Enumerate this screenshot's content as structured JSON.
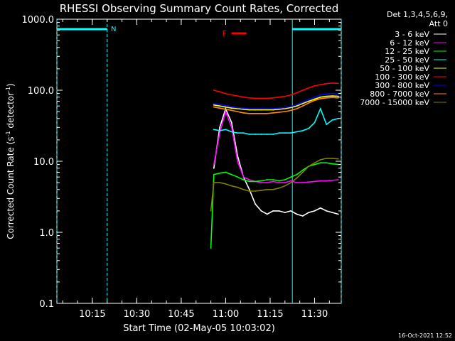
{
  "chart_data": {
    "type": "line",
    "title": "RHESSI Observing Summary Count Rates, Corrected",
    "xlabel": "Start Time (02-May-05 10:03:02)",
    "ylabel_parts": [
      "Corrected Count Rate (s",
      "-1",
      " detector",
      "-1",
      ")"
    ],
    "yscale": "log",
    "ylim": [
      0.1,
      1000.0
    ],
    "xlim": [
      "10:03:02",
      "11:39:00"
    ],
    "y_ticks": [
      "1000.0",
      "100.0",
      "10.0",
      "1.0",
      "0.1"
    ],
    "x_ticks": [
      "10:15",
      "10:30",
      "10:45",
      "11:00",
      "11:15",
      "11:30"
    ],
    "legend_header": [
      "Det 1,3,4,5,6,9,",
      "Att 0"
    ],
    "legend_position": "right",
    "timestamp": "16-Oct-2021 12:52",
    "series": [
      {
        "name": "3 - 6 keV",
        "color": "#ffffff",
        "x": [
          "10:56",
          "10:58",
          "11:00",
          "11:02",
          "11:04",
          "11:06",
          "11:08",
          "11:10",
          "11:12",
          "11:14",
          "11:16",
          "11:18",
          "11:20",
          "11:22",
          "11:24",
          "11:26",
          "11:28",
          "11:30",
          "11:32",
          "11:34",
          "11:36",
          "11:38"
        ],
        "y": [
          8,
          30,
          55,
          35,
          12,
          6,
          4,
          2.5,
          2,
          1.8,
          2,
          2,
          1.9,
          2,
          1.8,
          1.7,
          1.9,
          2,
          2.2,
          2.0,
          1.9,
          1.8
        ]
      },
      {
        "name": "6 - 12 keV",
        "color": "#ff00ff",
        "x": [
          "10:56",
          "10:58",
          "11:00",
          "11:02",
          "11:04",
          "11:06",
          "11:08",
          "11:10",
          "11:12",
          "11:14",
          "11:16",
          "11:18",
          "11:20",
          "11:22",
          "11:24",
          "11:26",
          "11:28",
          "11:30",
          "11:32",
          "11:34",
          "11:36",
          "11:38"
        ],
        "y": [
          9,
          25,
          50,
          30,
          10,
          6,
          5.5,
          5.2,
          5,
          5,
          5.2,
          5,
          5,
          5.3,
          5,
          5,
          5.1,
          5.2,
          5.3,
          5.3,
          5.4,
          5.5
        ]
      },
      {
        "name": "12 - 25 keV",
        "color": "#00ff00",
        "x": [
          "10:55",
          "10:56",
          "10:58",
          "11:00",
          "11:02",
          "11:04",
          "11:06",
          "11:08",
          "11:10",
          "11:12",
          "11:14",
          "11:16",
          "11:18",
          "11:20",
          "11:22",
          "11:24",
          "11:26",
          "11:28",
          "11:30",
          "11:32",
          "11:34",
          "11:36",
          "11:38"
        ],
        "y": [
          0.6,
          6.5,
          6.8,
          7,
          6.5,
          6,
          5.5,
          5.2,
          5.2,
          5.3,
          5.5,
          5.5,
          5.3,
          5.5,
          6,
          6.5,
          7.5,
          8.5,
          9,
          9.5,
          9.5,
          9.2,
          9
        ]
      },
      {
        "name": "25 - 50 keV",
        "color": "#00ffff",
        "x": [
          "10:56",
          "10:58",
          "11:00",
          "11:02",
          "11:04",
          "11:06",
          "11:08",
          "11:10",
          "11:12",
          "11:14",
          "11:16",
          "11:18",
          "11:20",
          "11:22",
          "11:24",
          "11:26",
          "11:28",
          "11:30",
          "11:32",
          "11:34",
          "11:36",
          "11:38"
        ],
        "y": [
          28,
          27,
          28,
          26,
          25,
          25,
          24,
          24,
          24,
          24,
          24,
          25,
          25,
          25,
          26,
          27,
          29,
          35,
          55,
          33,
          38,
          40
        ]
      },
      {
        "name": "50 - 100 keV",
        "color": "#ffff00",
        "x": [
          "10:56",
          "10:58",
          "11:00",
          "11:02",
          "11:04",
          "11:06",
          "11:08",
          "11:10",
          "11:12",
          "11:14",
          "11:16",
          "11:18",
          "11:20",
          "11:22",
          "11:24",
          "11:26",
          "11:28",
          "11:30",
          "11:32",
          "11:34",
          "11:36",
          "11:38"
        ],
        "y": [
          62,
          60,
          58,
          56,
          55,
          54,
          53,
          53,
          53,
          53,
          53,
          54,
          55,
          57,
          60,
          65,
          70,
          75,
          80,
          82,
          83,
          82
        ]
      },
      {
        "name": "100 - 300 keV",
        "color": "#ff0000",
        "x": [
          "10:56",
          "10:58",
          "11:00",
          "11:02",
          "11:04",
          "11:06",
          "11:08",
          "11:10",
          "11:12",
          "11:14",
          "11:16",
          "11:18",
          "11:20",
          "11:22",
          "11:24",
          "11:26",
          "11:28",
          "11:30",
          "11:32",
          "11:34",
          "11:36",
          "11:38"
        ],
        "y": [
          100,
          95,
          90,
          86,
          83,
          80,
          78,
          77,
          77,
          77,
          78,
          80,
          82,
          86,
          92,
          100,
          108,
          115,
          120,
          124,
          126,
          125
        ]
      },
      {
        "name": "300 - 800 keV",
        "color": "#0000ff",
        "x": [
          "10:56",
          "10:58",
          "11:00",
          "11:02",
          "11:04",
          "11:06",
          "11:08",
          "11:10",
          "11:12",
          "11:14",
          "11:16",
          "11:18",
          "11:20",
          "11:22",
          "11:24",
          "11:26",
          "11:28",
          "11:30",
          "11:32",
          "11:34",
          "11:36",
          "11:38"
        ],
        "y": [
          65,
          63,
          61,
          59,
          57,
          56,
          55,
          55,
          55,
          55,
          55,
          56,
          57,
          59,
          63,
          68,
          74,
          80,
          86,
          89,
          90,
          89
        ]
      },
      {
        "name": "800 - 7000 keV",
        "color": "#ff8c00",
        "x": [
          "10:56",
          "10:58",
          "11:00",
          "11:02",
          "11:04",
          "11:06",
          "11:08",
          "11:10",
          "11:12",
          "11:14",
          "11:16",
          "11:18",
          "11:20",
          "11:22",
          "11:24",
          "11:26",
          "11:28",
          "11:30",
          "11:32",
          "11:34",
          "11:36",
          "11:38"
        ],
        "y": [
          58,
          56,
          54,
          52,
          50,
          48,
          47,
          47,
          47,
          47,
          48,
          49,
          50,
          52,
          55,
          60,
          66,
          72,
          76,
          78,
          79,
          78
        ]
      },
      {
        "name": "7000 - 15000 keV",
        "color": "#808000",
        "x": [
          "10:55",
          "10:56",
          "10:58",
          "11:00",
          "11:02",
          "11:04",
          "11:06",
          "11:08",
          "11:10",
          "11:12",
          "11:14",
          "11:16",
          "11:18",
          "11:20",
          "11:22",
          "11:24",
          "11:26",
          "11:28",
          "11:30",
          "11:32",
          "11:34",
          "11:36",
          "11:38"
        ],
        "y": [
          2,
          5,
          5,
          4.8,
          4.5,
          4.3,
          4,
          3.8,
          3.8,
          3.9,
          4,
          4,
          4.2,
          4.5,
          5,
          5.8,
          7,
          8.5,
          9.5,
          10.5,
          11,
          11,
          10.8
        ]
      }
    ],
    "annotations": [
      {
        "label": "N",
        "color": "#00ffff",
        "start": "10:03:02",
        "end": "10:20:00"
      },
      {
        "label": "F",
        "color": "#ff0000",
        "start": "11:02:00",
        "end": "11:07:00"
      },
      {
        "label": "",
        "color": "#00ffff",
        "start": "11:22:30",
        "end": "11:39:00"
      }
    ],
    "grid": false
  }
}
